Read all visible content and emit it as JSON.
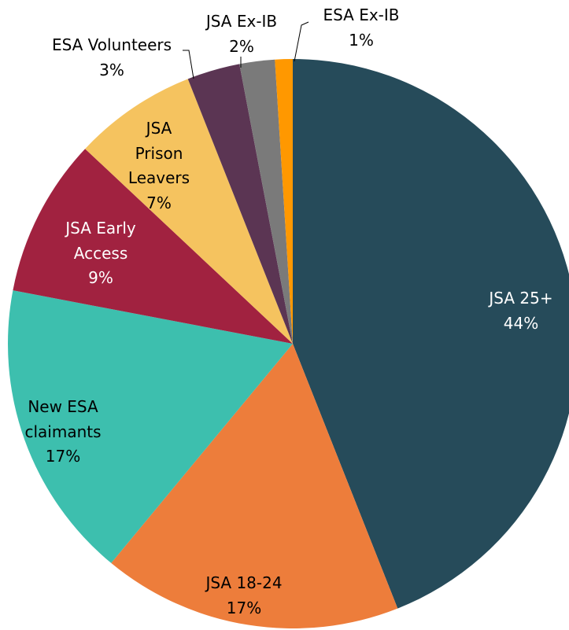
{
  "chart_data": {
    "type": "pie",
    "categories": [
      "JSA 25+",
      "JSA 18-24",
      "New ESA claimants",
      "JSA Early Access",
      "JSA Prison Leavers",
      "ESA Volunteers",
      "JSA Ex-IB",
      "ESA Ex-IB"
    ],
    "values": [
      44,
      17,
      17,
      9,
      7,
      3,
      2,
      1
    ],
    "value_labels": [
      "44%",
      "17%",
      "17%",
      "9%",
      "7%",
      "3%",
      "2%",
      "1%"
    ],
    "colors": [
      "#264b5a",
      "#ed7d3b",
      "#3dbfae",
      "#a12240",
      "#f5c35f",
      "#5b3553",
      "#7a7a7a",
      "#ff9800"
    ]
  }
}
